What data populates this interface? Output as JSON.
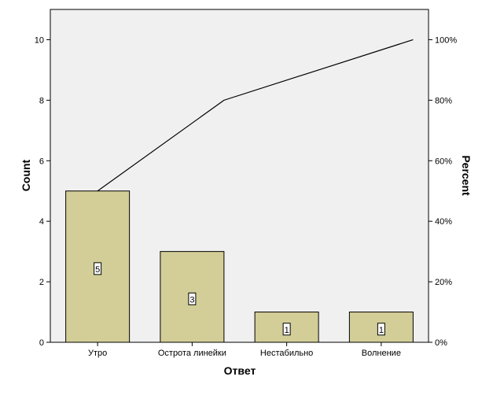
{
  "chart_data": {
    "type": "bar",
    "xlabel": "Ответ",
    "ylabel": "Count",
    "y2label": "Percent",
    "categories": [
      "Утро",
      "Острота линейки",
      "Нестабильно",
      "Волнение"
    ],
    "values": [
      5,
      3,
      1,
      1
    ],
    "data_labels": [
      "5",
      "3",
      "1",
      "1"
    ],
    "ylim": [
      0,
      11
    ],
    "yticks": [
      0,
      2,
      4,
      6,
      8,
      10
    ],
    "y2ticks": [
      "0%",
      "20%",
      "40%",
      "60%",
      "80%",
      "100%"
    ],
    "cumulative_percent": [
      50,
      80,
      90,
      100
    ],
    "colors": {
      "bar": "#d3ce97",
      "plot_background": "#f0f0f0",
      "line": "#000000"
    },
    "grid": false
  }
}
